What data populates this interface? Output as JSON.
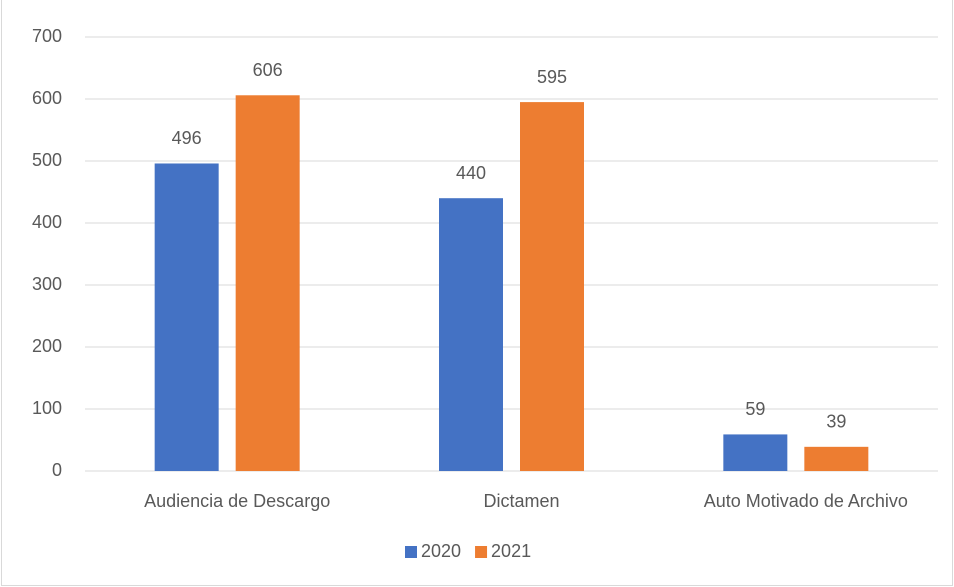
{
  "chart_data": {
    "type": "bar",
    "categories": [
      "Audiencia de Descargo",
      "Dictamen",
      "Auto Motivado de Archivo"
    ],
    "series": [
      {
        "name": "2020",
        "color": "#4472c4",
        "values": [
          496,
          440,
          59
        ]
      },
      {
        "name": "2021",
        "color": "#ed7d31",
        "values": [
          606,
          595,
          39
        ]
      }
    ],
    "ylim": [
      0,
      700
    ],
    "yticks": [
      0,
      100,
      200,
      300,
      400,
      500,
      600,
      700
    ],
    "grid": true,
    "legend": "bottom"
  }
}
